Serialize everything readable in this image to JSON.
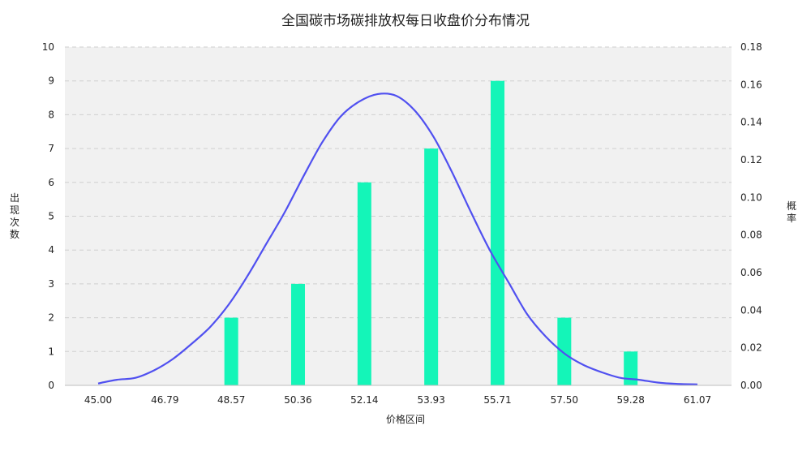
{
  "chart_data": {
    "type": "bar",
    "title": "全国碳市场碳排放权每日收盘价分布情况",
    "xlabel": "价格区间",
    "ylabel": "出现次数",
    "y2label": "概率",
    "x_ticks": [
      "45.00",
      "46.79",
      "48.57",
      "50.36",
      "52.14",
      "53.93",
      "55.71",
      "57.50",
      "59.28",
      "61.07"
    ],
    "y_ticks": [
      "0",
      "1",
      "2",
      "3",
      "4",
      "5",
      "6",
      "7",
      "8",
      "9",
      "10"
    ],
    "y2_ticks": [
      "0.00",
      "0.02",
      "0.04",
      "0.06",
      "0.08",
      "0.10",
      "0.12",
      "0.14",
      "0.16",
      "0.18"
    ],
    "ylim": [
      0,
      10
    ],
    "y2lim": [
      0,
      0.18
    ],
    "xlim": [
      45.0,
      61.07
    ],
    "bars": {
      "x": [
        48.57,
        50.36,
        52.14,
        53.93,
        55.71,
        57.5,
        59.28
      ],
      "values": [
        2,
        3,
        6,
        7,
        9,
        2,
        1
      ],
      "color": "#14f5b8"
    },
    "density_curve": {
      "x": [
        45.0,
        45.5,
        46.0,
        46.5,
        47.0,
        47.5,
        48.0,
        48.5,
        49.0,
        49.5,
        50.0,
        50.5,
        51.0,
        51.5,
        52.0,
        52.5,
        53.0,
        53.5,
        54.0,
        54.5,
        55.0,
        55.5,
        56.0,
        56.5,
        57.0,
        57.5,
        58.0,
        58.5,
        59.0,
        59.5,
        60.0,
        60.5,
        61.07
      ],
      "y": [
        0.001,
        0.003,
        0.004,
        0.008,
        0.014,
        0.022,
        0.031,
        0.043,
        0.058,
        0.075,
        0.092,
        0.111,
        0.129,
        0.143,
        0.151,
        0.155,
        0.154,
        0.146,
        0.132,
        0.113,
        0.092,
        0.072,
        0.055,
        0.038,
        0.026,
        0.017,
        0.011,
        0.007,
        0.004,
        0.003,
        0.0015,
        0.0008,
        0.0005
      ],
      "color": "#5050f0"
    },
    "grid": true,
    "legend": "none",
    "colors": {
      "plot_bg": "#f1f1f1",
      "grid": "#cfcfcf"
    }
  }
}
